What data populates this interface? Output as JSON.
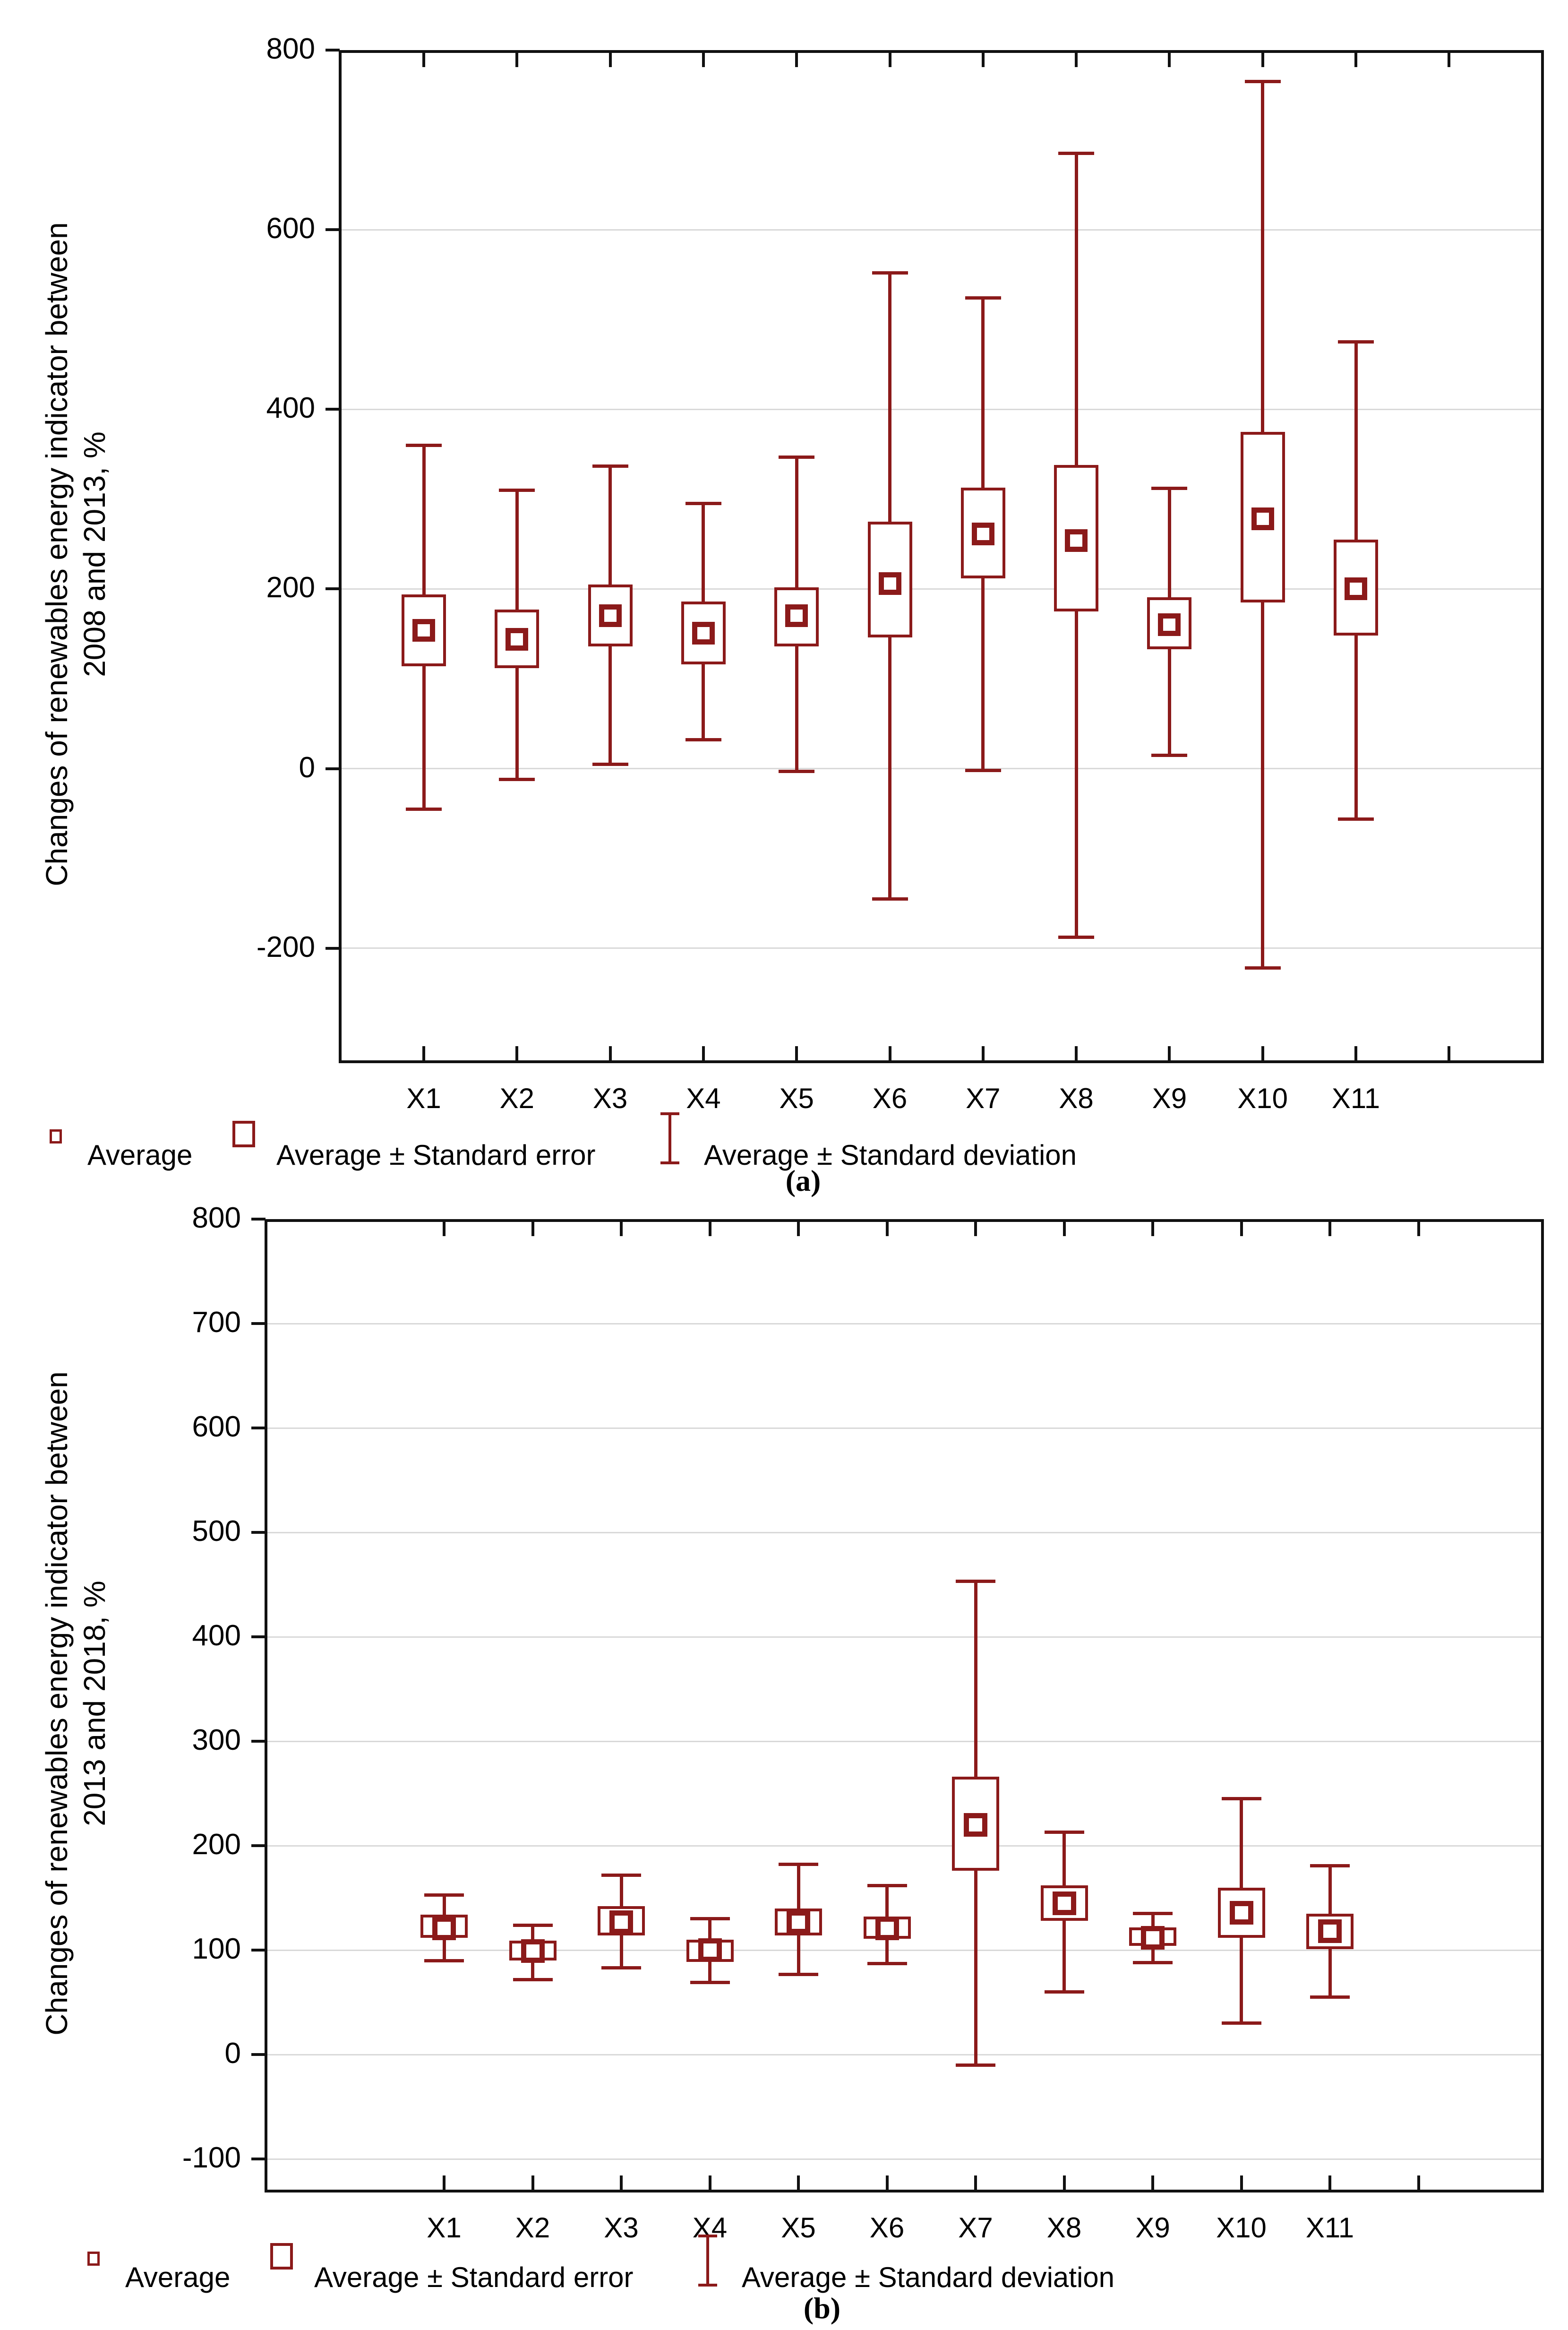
{
  "palette": {
    "series_color": "#8b1a1a",
    "grid_color": "#d9d9d9",
    "axis_color": "#111111",
    "text_color": "#000000",
    "background": "#ffffff"
  },
  "legend": {
    "items": [
      {
        "icon": "small-open-square",
        "label": "Average"
      },
      {
        "icon": "large-open-square",
        "label": "Average ± Standard error"
      },
      {
        "icon": "error-bar-glyph",
        "label": "Average ± Standard deviation"
      }
    ]
  },
  "captions": {
    "a": "(a)",
    "b": "(b)"
  },
  "chart_data": [
    {
      "type": "box",
      "id": "a",
      "title": "",
      "xlabel": "",
      "ylabel": "Changes of renewables energy indicator between 2008 and 2013, %",
      "ylabel_lines": [
        "Changes of renewables energy indicator between",
        "2008 and 2013, %"
      ],
      "categories": [
        "X1",
        "X2",
        "X3",
        "X4",
        "X5",
        "X6",
        "X7",
        "X8",
        "X9",
        "X10",
        "X11"
      ],
      "yticks": [
        800,
        600,
        400,
        200,
        0,
        -200
      ],
      "gridlines": [
        600,
        400,
        200,
        0,
        -200
      ],
      "ylim": [
        -328,
        800
      ],
      "grid": true,
      "legend_position": "bottom-left",
      "series": [
        {
          "category": "X1",
          "mean": 154,
          "se": [
            114,
            194
          ],
          "sd": [
            -45,
            360
          ]
        },
        {
          "category": "X2",
          "mean": 144,
          "se": [
            112,
            177
          ],
          "sd": [
            -12,
            310
          ]
        },
        {
          "category": "X3",
          "mean": 170,
          "se": [
            136,
            205
          ],
          "sd": [
            5,
            337
          ]
        },
        {
          "category": "X4",
          "mean": 151,
          "se": [
            116,
            186
          ],
          "sd": [
            32,
            295
          ]
        },
        {
          "category": "X5",
          "mean": 170,
          "se": [
            136,
            202
          ],
          "sd": [
            -3,
            347
          ]
        },
        {
          "category": "X6",
          "mean": 206,
          "se": [
            146,
            275
          ],
          "sd": [
            -145,
            552
          ]
        },
        {
          "category": "X7",
          "mean": 261,
          "se": [
            212,
            313
          ],
          "sd": [
            -2,
            524
          ]
        },
        {
          "category": "X8",
          "mean": 254,
          "se": [
            175,
            338
          ],
          "sd": [
            -188,
            685
          ]
        },
        {
          "category": "X9",
          "mean": 160,
          "se": [
            133,
            191
          ],
          "sd": [
            15,
            312
          ]
        },
        {
          "category": "X10",
          "mean": 278,
          "se": [
            185,
            375
          ],
          "sd": [
            -222,
            765
          ]
        },
        {
          "category": "X11",
          "mean": 200,
          "se": [
            148,
            255
          ],
          "sd": [
            -56,
            475
          ]
        }
      ]
    },
    {
      "type": "box",
      "id": "b",
      "title": "",
      "xlabel": "",
      "ylabel": "Changes of renewables energy indicator between 2013 and 2018, %",
      "ylabel_lines": [
        "Changes of renewables energy indicator between",
        "2013 and 2018, %"
      ],
      "categories": [
        "X1",
        "X2",
        "X3",
        "X4",
        "X5",
        "X6",
        "X7",
        "X8",
        "X9",
        "X10",
        "X11"
      ],
      "yticks": [
        800,
        700,
        600,
        500,
        400,
        300,
        200,
        100,
        0,
        -100
      ],
      "gridlines": [
        700,
        600,
        500,
        400,
        300,
        200,
        100,
        0,
        -100
      ],
      "ylim": [
        -132,
        800
      ],
      "grid": true,
      "legend_position": "bottom-left",
      "series": [
        {
          "category": "X1",
          "mean": 121,
          "se": [
            112,
            134
          ],
          "sd": [
            90,
            153
          ]
        },
        {
          "category": "X2",
          "mean": 99,
          "se": [
            90,
            109
          ],
          "sd": [
            72,
            124
          ]
        },
        {
          "category": "X3",
          "mean": 127,
          "se": [
            114,
            142
          ],
          "sd": [
            83,
            172
          ]
        },
        {
          "category": "X4",
          "mean": 100,
          "se": [
            89,
            110
          ],
          "sd": [
            69,
            130
          ]
        },
        {
          "category": "X5",
          "mean": 127,
          "se": [
            114,
            140
          ],
          "sd": [
            77,
            182
          ]
        },
        {
          "category": "X6",
          "mean": 121,
          "se": [
            111,
            132
          ],
          "sd": [
            87,
            162
          ]
        },
        {
          "category": "X7",
          "mean": 220,
          "se": [
            176,
            266
          ],
          "sd": [
            -10,
            453
          ]
        },
        {
          "category": "X8",
          "mean": 145,
          "se": [
            128,
            162
          ],
          "sd": [
            60,
            213
          ]
        },
        {
          "category": "X9",
          "mean": 112,
          "se": [
            104,
            122
          ],
          "sd": [
            88,
            135
          ]
        },
        {
          "category": "X10",
          "mean": 136,
          "se": [
            112,
            160
          ],
          "sd": [
            30,
            245
          ]
        },
        {
          "category": "X11",
          "mean": 118,
          "se": [
            101,
            135
          ],
          "sd": [
            55,
            181
          ]
        }
      ]
    }
  ]
}
